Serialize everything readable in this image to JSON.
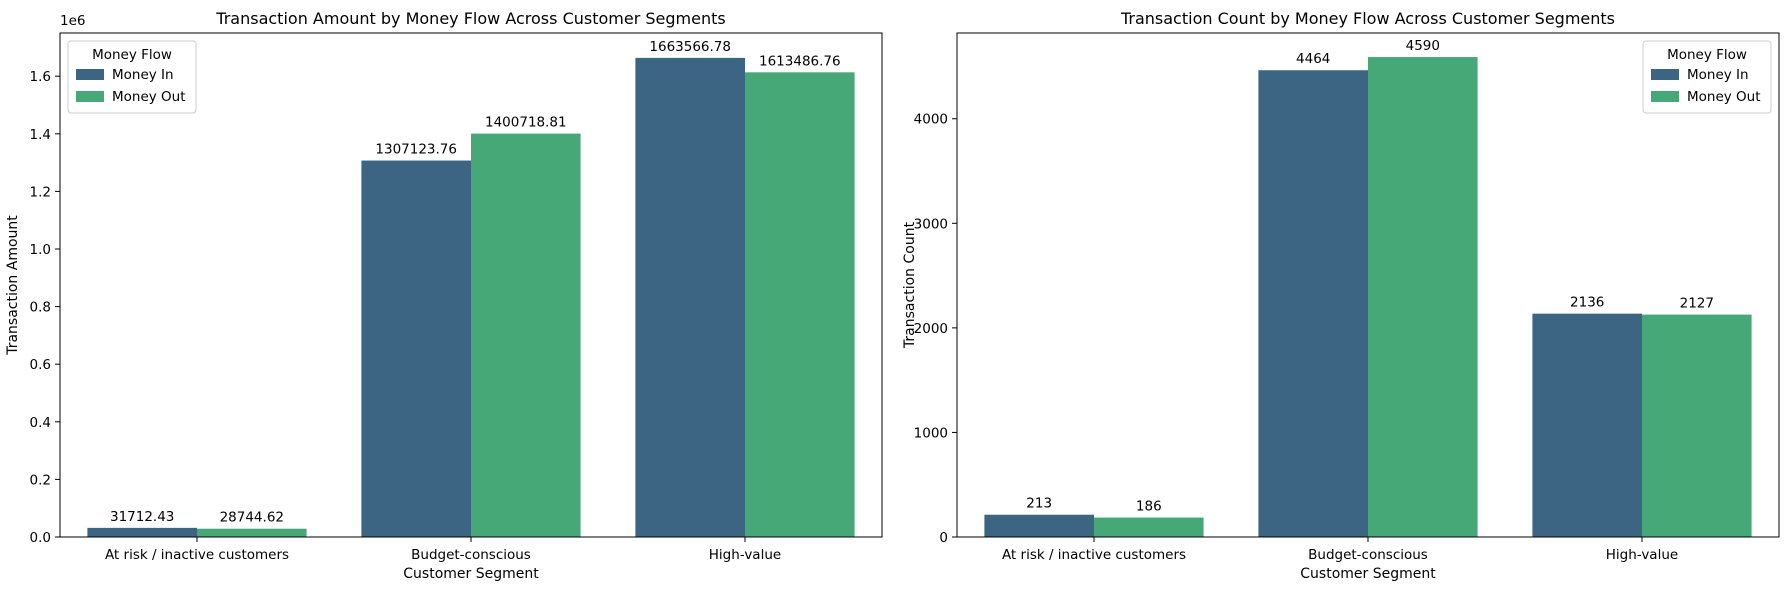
{
  "colors": {
    "money_in": "#3b6583",
    "money_out": "#46a877",
    "axis": "#000000",
    "legend_border": "#cccccc"
  },
  "chart_data": [
    {
      "type": "bar",
      "title": "Transaction Amount by Money Flow Across Customer Segments",
      "xlabel": "Customer Segment",
      "ylabel": "Transaction Amount",
      "offset_text": "1e6",
      "categories": [
        "At risk / inactive customers",
        "Budget-conscious",
        "High-value"
      ],
      "series": [
        {
          "name": "Money In",
          "values": [
            31712.43,
            1307123.76,
            1663566.78
          ],
          "labels": [
            "31712.43",
            "1307123.76",
            "1663566.78"
          ]
        },
        {
          "name": "Money Out",
          "values": [
            28744.62,
            1400718.81,
            1613486.76
          ],
          "labels": [
            "28744.62",
            "1400718.81",
            "1613486.76"
          ]
        }
      ],
      "ylim": [
        0,
        1750000
      ],
      "yticks": [
        0,
        200000,
        400000,
        600000,
        800000,
        1000000,
        1200000,
        1400000,
        1600000
      ],
      "ytick_labels": [
        "0.0",
        "0.2",
        "0.4",
        "0.6",
        "0.8",
        "1.0",
        "1.2",
        "1.4",
        "1.6"
      ],
      "legend": {
        "title": "Money Flow",
        "placement": "top-left"
      },
      "grid": false
    },
    {
      "type": "bar",
      "title": "Transaction Count by Money Flow Across Customer Segments",
      "xlabel": "Customer Segment",
      "ylabel": "Transaction Count",
      "offset_text": "",
      "categories": [
        "At risk / inactive customers",
        "Budget-conscious",
        "High-value"
      ],
      "series": [
        {
          "name": "Money In",
          "values": [
            213,
            4464,
            2136
          ],
          "labels": [
            "213",
            "4464",
            "2136"
          ]
        },
        {
          "name": "Money Out",
          "values": [
            186,
            4590,
            2127
          ],
          "labels": [
            "186",
            "4590",
            "2127"
          ]
        }
      ],
      "ylim": [
        0,
        4820
      ],
      "yticks": [
        0,
        1000,
        2000,
        3000,
        4000
      ],
      "ytick_labels": [
        "0",
        "1000",
        "2000",
        "3000",
        "4000"
      ],
      "legend": {
        "title": "Money Flow",
        "placement": "top-right"
      },
      "grid": false
    }
  ]
}
